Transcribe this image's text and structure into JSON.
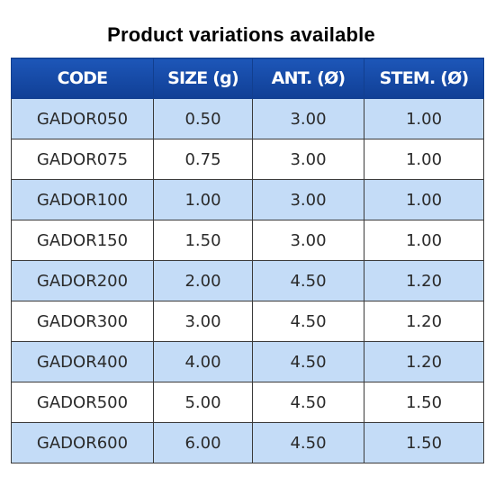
{
  "title": "Product variations available",
  "table": {
    "headers": [
      "CODE",
      "SIZE (g)",
      "ANT. (Ø)",
      "STEM. (Ø)"
    ],
    "rows": [
      [
        "GADOR050",
        "0.50",
        "3.00",
        "1.00"
      ],
      [
        "GADOR075",
        "0.75",
        "3.00",
        "1.00"
      ],
      [
        "GADOR100",
        "1.00",
        "3.00",
        "1.00"
      ],
      [
        "GADOR150",
        "1.50",
        "3.00",
        "1.00"
      ],
      [
        "GADOR200",
        "2.00",
        "4.50",
        "1.20"
      ],
      [
        "GADOR300",
        "3.00",
        "4.50",
        "1.20"
      ],
      [
        "GADOR400",
        "4.00",
        "4.50",
        "1.20"
      ],
      [
        "GADOR500",
        "5.00",
        "4.50",
        "1.50"
      ],
      [
        "GADOR600",
        "6.00",
        "4.50",
        "1.50"
      ]
    ]
  },
  "colors": {
    "header_bg": "#1a4fae",
    "header_text": "#ffffff",
    "row_shaded": "#c4dcf7",
    "row_plain": "#ffffff",
    "cell_text": "#2a2a2a"
  }
}
